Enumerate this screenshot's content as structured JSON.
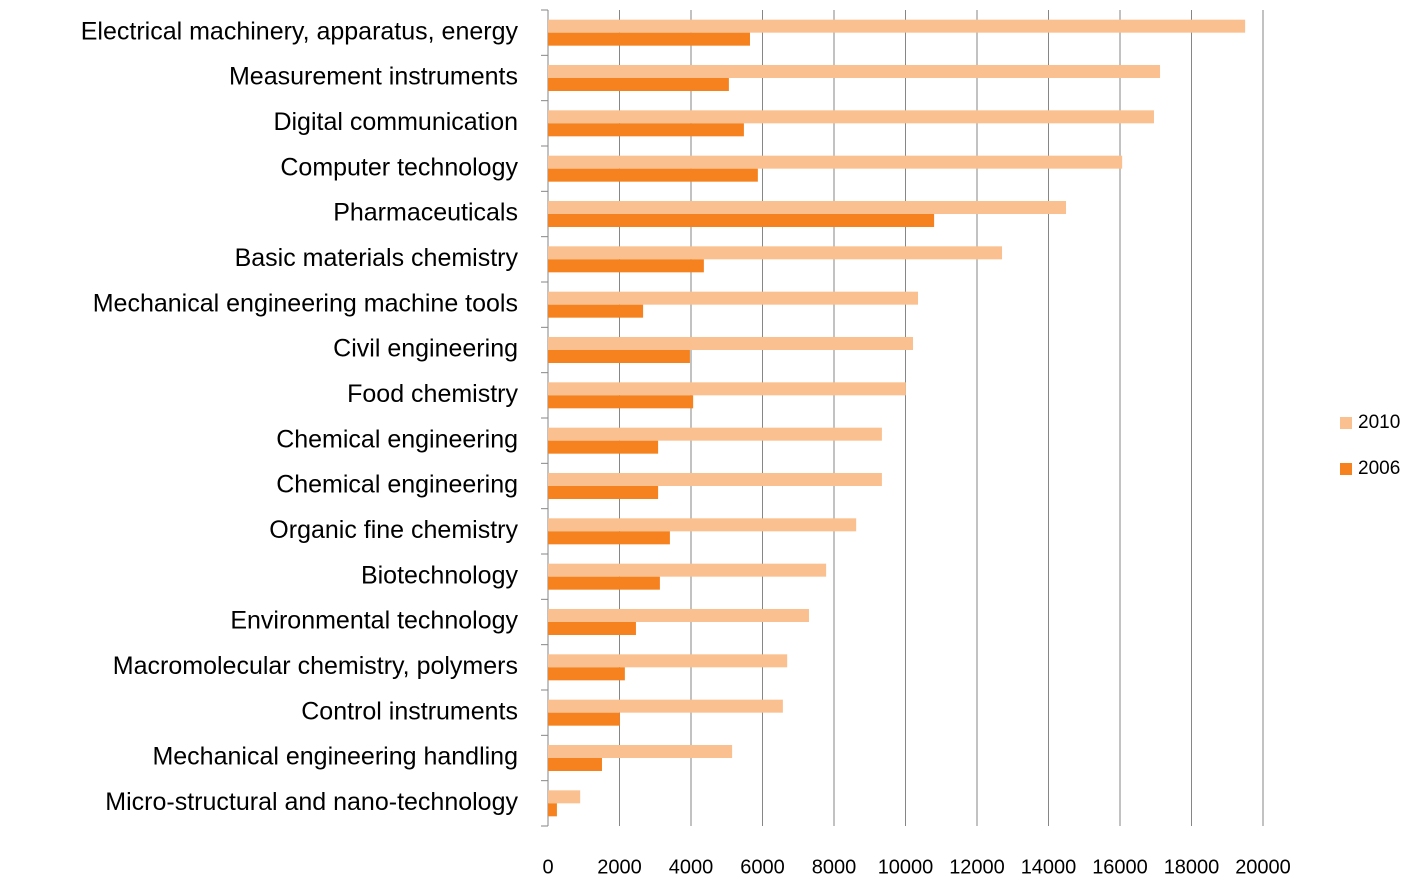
{
  "chart_data": {
    "type": "bar",
    "orientation": "horizontal",
    "categories": [
      "Electrical machinery, apparatus, energy",
      "Measurement instruments",
      "Digital communication",
      "Computer technology",
      "Pharmaceuticals",
      "Basic materials chemistry ",
      "Mechanical engineering machine tools",
      "Civil engineering",
      "Food chemistry",
      "Chemical engineering",
      "Chemical engineering",
      "Organic fine chemistry",
      "Biotechnology",
      "Environmental technology",
      "Macromolecular chemistry, polymers",
      "Control instruments",
      "Mechanical engineering handling",
      "Micro-structural and nano-technology"
    ],
    "series": [
      {
        "name": "2010",
        "color": "#fac08f",
        "values": [
          19500,
          17120,
          16950,
          16060,
          14490,
          12700,
          10350,
          10210,
          10010,
          9340,
          9340,
          8620,
          7780,
          7300,
          6690,
          6570,
          5150,
          900
        ]
      },
      {
        "name": "2006",
        "color": "#f6821f",
        "values": [
          5650,
          5060,
          5480,
          5870,
          10800,
          4360,
          2660,
          3970,
          4060,
          3080,
          3080,
          3410,
          3130,
          2460,
          2150,
          2010,
          1510,
          250
        ]
      }
    ],
    "xlim": [
      0,
      20000
    ],
    "xticks": [
      0,
      2000,
      4000,
      6000,
      8000,
      10000,
      12000,
      14000,
      16000,
      18000,
      20000
    ],
    "grid": true,
    "legend": "right"
  }
}
